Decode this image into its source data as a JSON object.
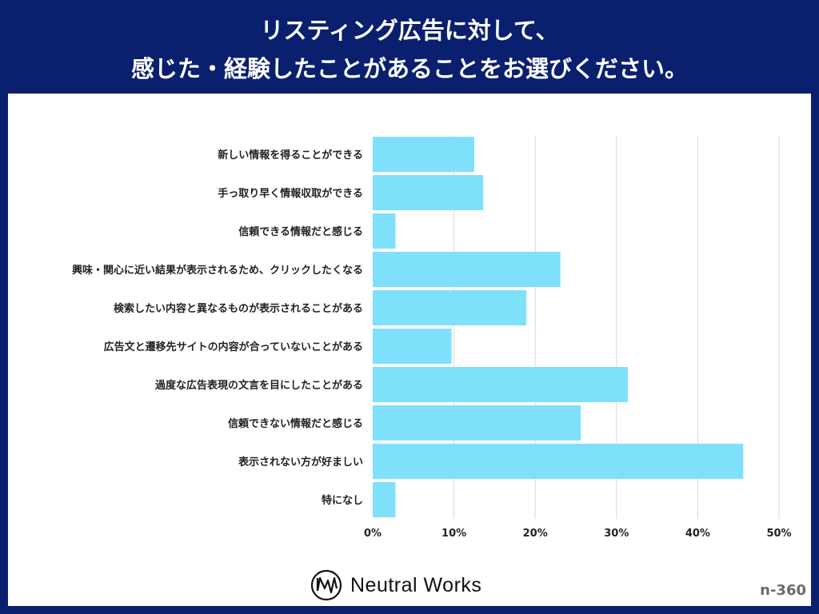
{
  "title": {
    "line1": "リスティング広告に対して、",
    "line2": "感じた・経験したことがあることをお選びください。"
  },
  "footer": {
    "logo_text": "Neutral Works",
    "sample_size": "n-360"
  },
  "chart_data": {
    "type": "bar",
    "orientation": "horizontal",
    "categories": [
      "新しい情報を得ることができる",
      "手っ取り早く情報収取ができる",
      "信頼できる情報だと感じる",
      "興味・関心に近い結果が表示されるため、クリックしたくなる",
      "検索したい内容と異なるものが表示されることがある",
      "広告文と遷移先サイトの内容が合っていないことがある",
      "過度な広告表現の文言を目にしたことがある",
      "信頼できない情報だと感じる",
      "表示されない方が好ましい",
      "特になし"
    ],
    "values": [
      12.5,
      13.6,
      2.8,
      23.1,
      18.9,
      9.7,
      31.4,
      25.6,
      45.6,
      2.8
    ],
    "xlim": [
      0,
      50
    ],
    "xticks": [
      "0%",
      "10%",
      "20%",
      "30%",
      "40%",
      "50%"
    ],
    "grid": true,
    "bar_color": "#7fe0fc",
    "grid_color": "#d9d9d9"
  }
}
